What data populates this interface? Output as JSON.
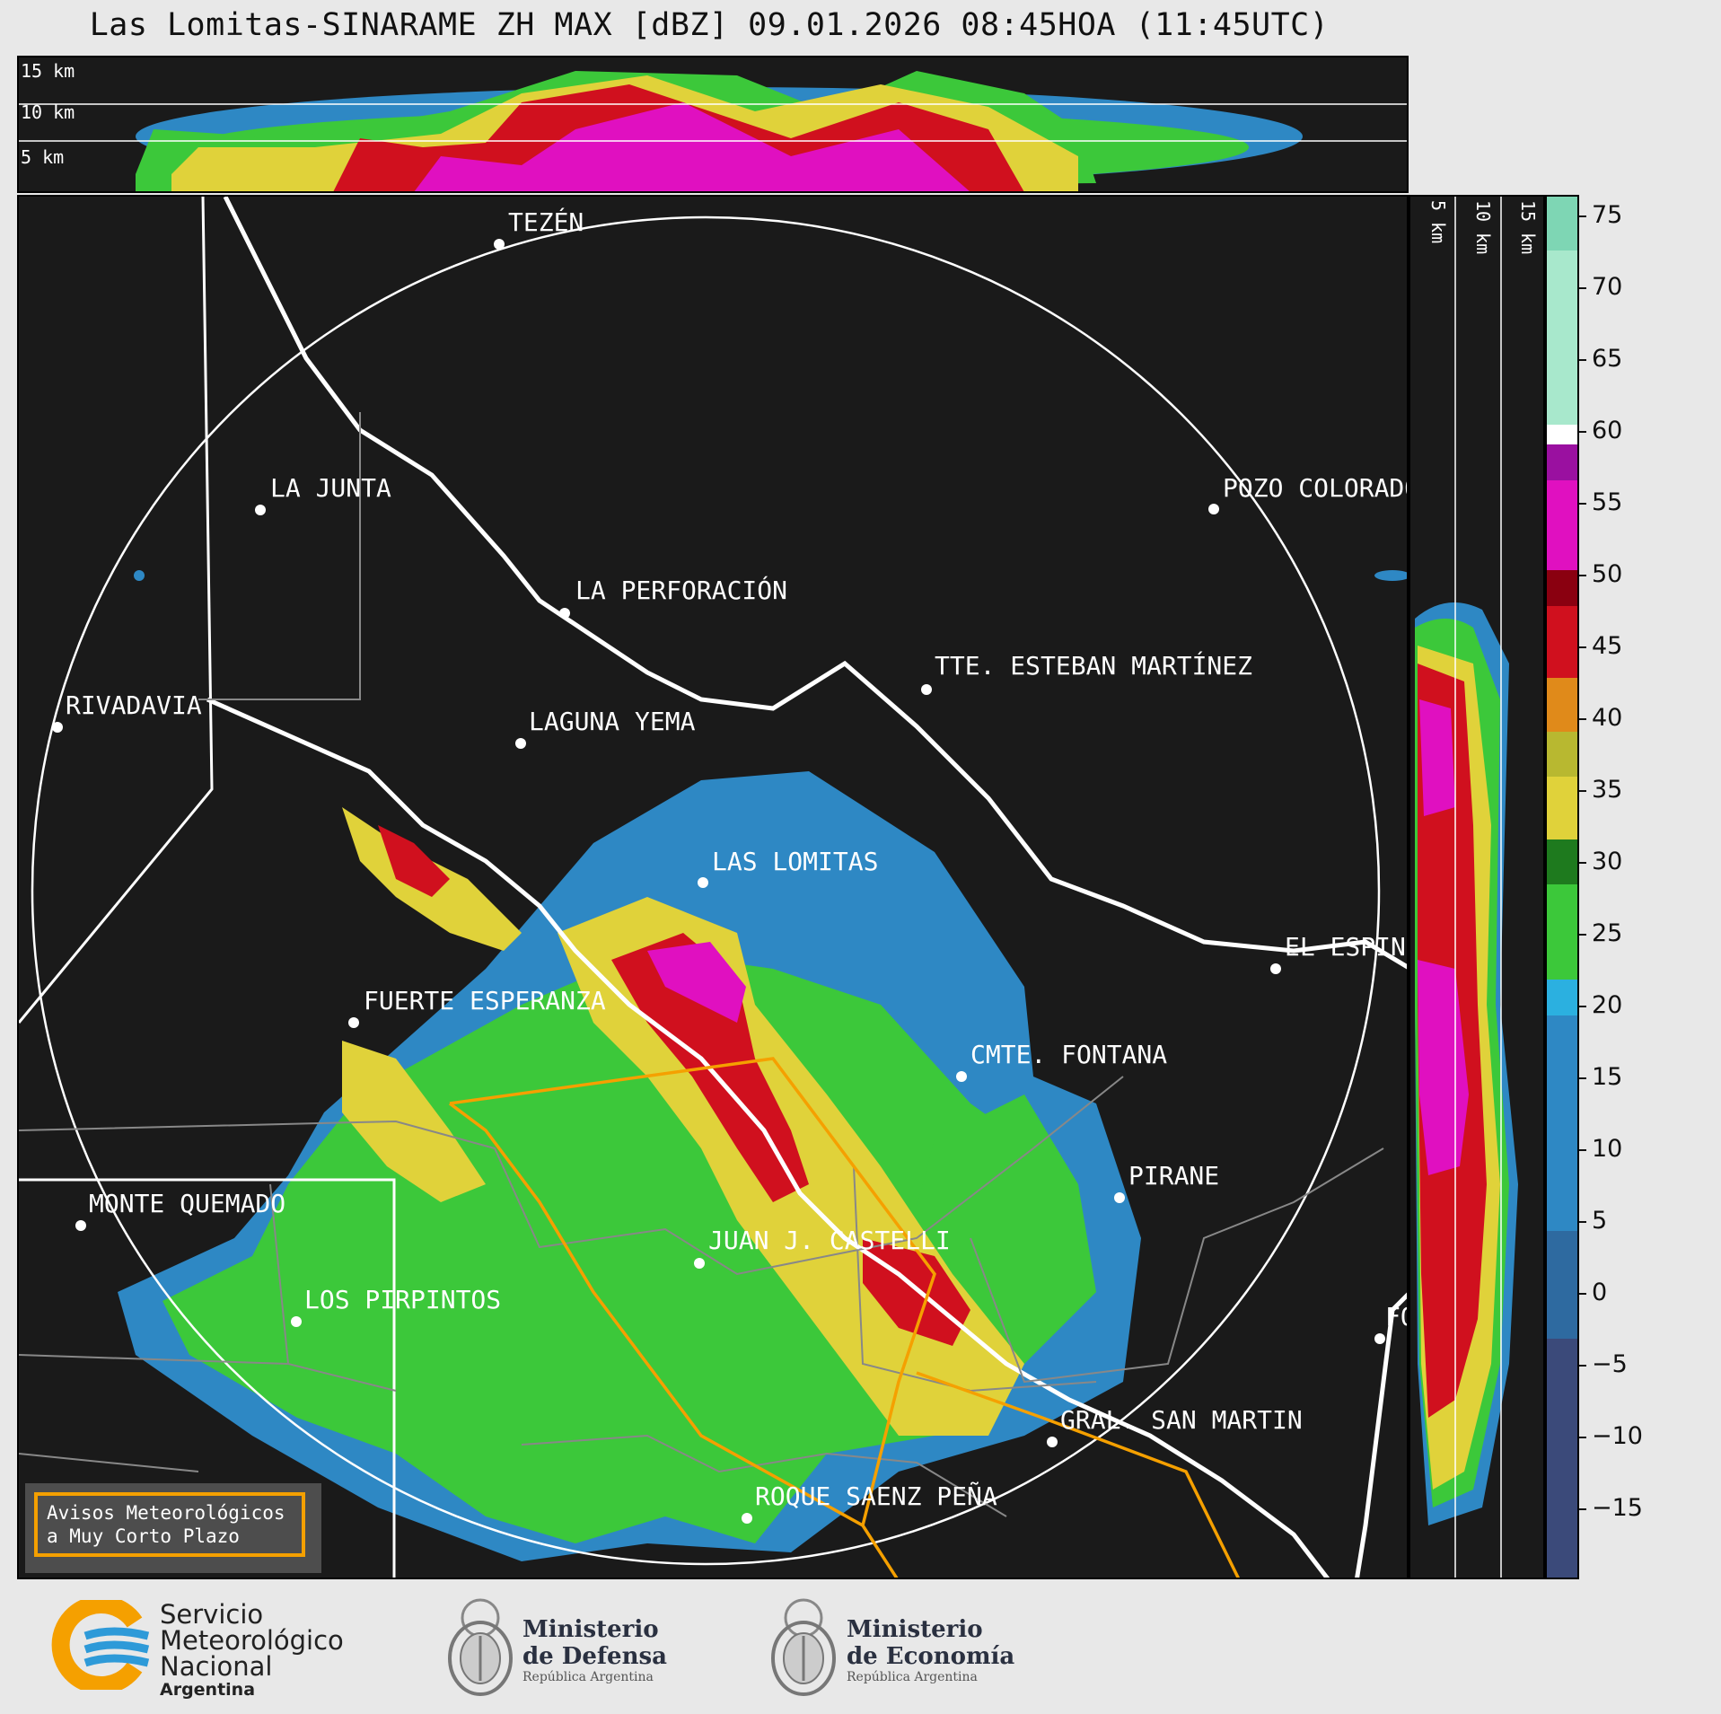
{
  "title": "Las Lomitas-SINARAME ZH MAX [dBZ] 09.01.2026 08:45HOA (11:45UTC)",
  "top_panel": {
    "height_labels": [
      "15 km",
      "10 km",
      "5 km"
    ]
  },
  "side_panel": {
    "height_labels": [
      "5 km",
      "10 km",
      "15 km"
    ]
  },
  "colorbar": {
    "unit": "dBZ",
    "ticks": [
      "75",
      "70",
      "65",
      "60",
      "55",
      "50",
      "45",
      "40",
      "35",
      "30",
      "25",
      "20",
      "15",
      "10",
      "5",
      "0",
      "−5",
      "−10",
      "−15"
    ],
    "colors": {
      "below_0": "#3b4a7a",
      "0_17": "#2e88c4",
      "17_20": "#2bb0e0",
      "20_30": "#3cc83a",
      "30_40": "#e0d23a",
      "40_43": "#e08a1a",
      "43_50": "#d0101e",
      "50_58": "#e010c0",
      "60_77": "#a8e8cc"
    }
  },
  "places": [
    {
      "name": "TEZÉN"
    },
    {
      "name": "LA JUNTA"
    },
    {
      "name": "POZO COLORADO"
    },
    {
      "name": "LA PERFORACIÓN"
    },
    {
      "name": "TTE. ESTEBAN MARTÍNEZ"
    },
    {
      "name": "RIVADAVIA"
    },
    {
      "name": "LAGUNA YEMA"
    },
    {
      "name": "LAS LOMITAS"
    },
    {
      "name": "EL ESPINILLO"
    },
    {
      "name": "FUERTE ESPERANZA"
    },
    {
      "name": "CMTE. FONTANA"
    },
    {
      "name": "PIRANE"
    },
    {
      "name": "MONTE QUEMADO"
    },
    {
      "name": "JUAN J. CASTELLI"
    },
    {
      "name": "LOS PIRPINTOS"
    },
    {
      "name": "GRAL. SAN MARTIN"
    },
    {
      "name": "ROQUE SAENZ PEÑA"
    },
    {
      "name": "FO"
    }
  ],
  "alert": {
    "line1": "Avisos Meteorológicos",
    "line2": "a Muy Corto Plazo"
  },
  "logos": {
    "smn": {
      "line1": "Servicio",
      "line2": "Meteorológico",
      "line3": "Nacional",
      "line4": "Argentina"
    },
    "defensa": {
      "line1": "Ministerio",
      "line2": "de Defensa",
      "line3": "República Argentina"
    },
    "economia": {
      "line1": "Ministerio",
      "line2": "de Economía",
      "line3": "República Argentina"
    }
  }
}
